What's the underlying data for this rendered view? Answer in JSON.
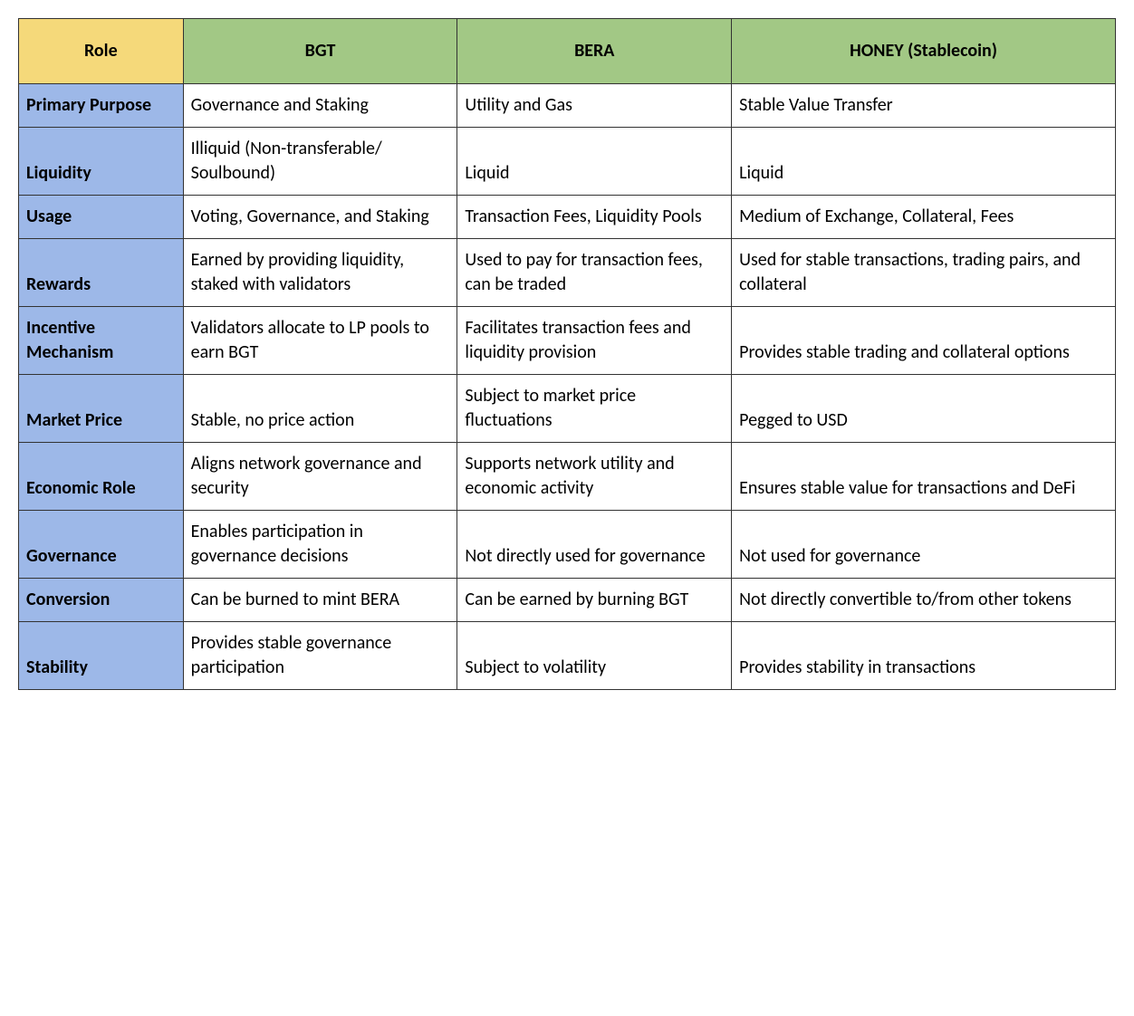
{
  "table": {
    "colors": {
      "role_header_bg": "#f5d97a",
      "token_header_bg": "#a2c885",
      "row_label_bg": "#9db8e8",
      "border_color": "#333333",
      "text_color": "#000000",
      "cell_bg": "#ffffff"
    },
    "typography": {
      "font_family": "Calibri, Arial, sans-serif",
      "cell_fontsize": 20,
      "header_fontweight": "bold",
      "row_label_fontweight": "bold"
    },
    "headers": {
      "role": "Role",
      "bgt": "BGT",
      "bera": "BERA",
      "honey": "HONEY (Stablecoin)"
    },
    "rows": [
      {
        "label": "Primary Purpose",
        "bgt": "Governance and Staking",
        "bera": "Utility and Gas",
        "honey": "Stable Value Transfer"
      },
      {
        "label": "Liquidity",
        "bgt": "Illiquid (Non-transferable/ Soulbound)",
        "bera": "Liquid",
        "honey": "Liquid"
      },
      {
        "label": "Usage",
        "bgt": "Voting, Governance, and Staking",
        "bera": "Transaction Fees, Liquidity Pools",
        "honey": "Medium of Exchange, Collateral, Fees"
      },
      {
        "label": "Rewards",
        "bgt": "Earned by providing liquidity, staked with validators",
        "bera": "Used to pay for transaction fees, can be traded",
        "honey": "Used for stable transactions, trading pairs, and collateral"
      },
      {
        "label": "Incentive Mechanism",
        "bgt": "Validators allocate to LP pools to earn BGT",
        "bera": "Facilitates transaction fees and liquidity provision",
        "honey": "Provides stable trading and collateral options"
      },
      {
        "label": "Market Price",
        "bgt": "Stable, no price action",
        "bera": "Subject to market price fluctuations",
        "honey": "Pegged to USD"
      },
      {
        "label": "Economic Role",
        "bgt": "Aligns network governance and security",
        "bera": "Supports network utility and economic activity",
        "honey": "Ensures stable value for transactions and DeFi"
      },
      {
        "label": "Governance",
        "bgt": "Enables participation in governance decisions",
        "bera": "Not directly used for governance",
        "honey": "Not used for governance"
      },
      {
        "label": "Conversion",
        "bgt": "Can be burned to mint BERA",
        "bera": "Can be earned by burning BGT",
        "honey": "Not directly convertible to/from other tokens"
      },
      {
        "label": "Stability",
        "bgt": "Provides stable governance participation",
        "bera": "Subject to volatility",
        "honey": "Provides stability in transactions"
      }
    ]
  }
}
